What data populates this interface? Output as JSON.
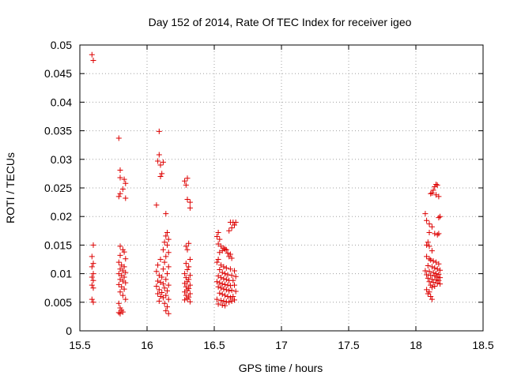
{
  "chart_data": {
    "type": "scatter",
    "title": "Day 152 of 2014, Rate Of TEC Index for receiver igeo",
    "xlabel": "GPS time / hours",
    "ylabel": "ROTI / TECUs",
    "xlim": [
      15.5,
      18.5
    ],
    "ylim": [
      0,
      0.05
    ],
    "xticks": [
      15.5,
      16,
      16.5,
      17,
      17.5,
      18,
      18.5
    ],
    "yticks": [
      0,
      0.005,
      0.01,
      0.015,
      0.02,
      0.025,
      0.03,
      0.035,
      0.04,
      0.045,
      0.05
    ],
    "xtick_labels": [
      "15.5",
      "16",
      "16.5",
      "17",
      "17.5",
      "18",
      "18.5"
    ],
    "ytick_labels": [
      "0",
      "0.005",
      "0.01",
      "0.015",
      "0.02",
      "0.025",
      "0.03",
      "0.035",
      "0.04",
      "0.045",
      "0.05"
    ],
    "grid": true,
    "marker": "+",
    "marker_color": "#dd0000",
    "series": [
      {
        "name": "ROTI",
        "points": [
          [
            15.59,
            0.0483
          ],
          [
            15.6,
            0.0473
          ],
          [
            15.6,
            0.015
          ],
          [
            15.59,
            0.013
          ],
          [
            15.6,
            0.0118
          ],
          [
            15.59,
            0.0112
          ],
          [
            15.6,
            0.01
          ],
          [
            15.59,
            0.0094
          ],
          [
            15.6,
            0.0088
          ],
          [
            15.59,
            0.008
          ],
          [
            15.6,
            0.0075
          ],
          [
            15.59,
            0.0055
          ],
          [
            15.6,
            0.005
          ],
          [
            15.79,
            0.0337
          ],
          [
            15.8,
            0.0281
          ],
          [
            15.8,
            0.0268
          ],
          [
            15.83,
            0.0265
          ],
          [
            15.84,
            0.0258
          ],
          [
            15.82,
            0.0248
          ],
          [
            15.8,
            0.024
          ],
          [
            15.79,
            0.0235
          ],
          [
            15.84,
            0.0232
          ],
          [
            15.8,
            0.0148
          ],
          [
            15.82,
            0.0142
          ],
          [
            15.83,
            0.0138
          ],
          [
            15.8,
            0.0132
          ],
          [
            15.84,
            0.0126
          ],
          [
            15.79,
            0.012
          ],
          [
            15.81,
            0.0115
          ],
          [
            15.83,
            0.0112
          ],
          [
            15.8,
            0.0108
          ],
          [
            15.82,
            0.0105
          ],
          [
            15.84,
            0.0102
          ],
          [
            15.79,
            0.01
          ],
          [
            15.81,
            0.0097
          ],
          [
            15.83,
            0.0094
          ],
          [
            15.8,
            0.009
          ],
          [
            15.82,
            0.0087
          ],
          [
            15.84,
            0.0084
          ],
          [
            15.79,
            0.0081
          ],
          [
            15.81,
            0.0077
          ],
          [
            15.83,
            0.0073
          ],
          [
            15.8,
            0.0068
          ],
          [
            15.82,
            0.0062
          ],
          [
            15.84,
            0.0055
          ],
          [
            15.79,
            0.0048
          ],
          [
            15.8,
            0.004
          ],
          [
            15.81,
            0.0036
          ],
          [
            15.79,
            0.0032
          ],
          [
            15.8,
            0.003
          ],
          [
            15.82,
            0.0033
          ],
          [
            16.09,
            0.0349
          ],
          [
            16.09,
            0.0308
          ],
          [
            16.08,
            0.0297
          ],
          [
            16.12,
            0.0295
          ],
          [
            16.1,
            0.029
          ],
          [
            16.11,
            0.0275
          ],
          [
            16.1,
            0.027
          ],
          [
            16.07,
            0.022
          ],
          [
            16.14,
            0.0205
          ],
          [
            16.15,
            0.0172
          ],
          [
            16.14,
            0.0166
          ],
          [
            16.16,
            0.016
          ],
          [
            16.13,
            0.0155
          ],
          [
            16.15,
            0.015
          ],
          [
            16.12,
            0.0142
          ],
          [
            16.16,
            0.0137
          ],
          [
            16.14,
            0.013
          ],
          [
            16.1,
            0.0125
          ],
          [
            16.13,
            0.012
          ],
          [
            16.08,
            0.0115
          ],
          [
            16.16,
            0.0112
          ],
          [
            16.12,
            0.0108
          ],
          [
            16.07,
            0.0104
          ],
          [
            16.15,
            0.01
          ],
          [
            16.09,
            0.0097
          ],
          [
            16.11,
            0.0094
          ],
          [
            16.14,
            0.009
          ],
          [
            16.08,
            0.0087
          ],
          [
            16.1,
            0.0085
          ],
          [
            16.12,
            0.0082
          ],
          [
            16.16,
            0.008
          ],
          [
            16.07,
            0.0078
          ],
          [
            16.13,
            0.0075
          ],
          [
            16.09,
            0.0072
          ],
          [
            16.15,
            0.007
          ],
          [
            16.11,
            0.0067
          ],
          [
            16.08,
            0.0065
          ],
          [
            16.14,
            0.0062
          ],
          [
            16.1,
            0.006
          ],
          [
            16.12,
            0.0058
          ],
          [
            16.16,
            0.0055
          ],
          [
            16.09,
            0.0052
          ],
          [
            16.13,
            0.0048
          ],
          [
            16.15,
            0.0042
          ],
          [
            16.14,
            0.0035
          ],
          [
            16.16,
            0.003
          ],
          [
            16.3,
            0.0267
          ],
          [
            16.28,
            0.0262
          ],
          [
            16.29,
            0.0255
          ],
          [
            16.3,
            0.023
          ],
          [
            16.32,
            0.0225
          ],
          [
            16.32,
            0.0215
          ],
          [
            16.31,
            0.0153
          ],
          [
            16.29,
            0.0148
          ],
          [
            16.3,
            0.0142
          ],
          [
            16.32,
            0.0125
          ],
          [
            16.29,
            0.0118
          ],
          [
            16.31,
            0.0112
          ],
          [
            16.3,
            0.0107
          ],
          [
            16.28,
            0.01
          ],
          [
            16.32,
            0.0097
          ],
          [
            16.29,
            0.0093
          ],
          [
            16.31,
            0.009
          ],
          [
            16.3,
            0.0086
          ],
          [
            16.28,
            0.0083
          ],
          [
            16.32,
            0.008
          ],
          [
            16.29,
            0.0077
          ],
          [
            16.31,
            0.0074
          ],
          [
            16.3,
            0.0071
          ],
          [
            16.28,
            0.0068
          ],
          [
            16.32,
            0.0065
          ],
          [
            16.29,
            0.0062
          ],
          [
            16.31,
            0.0059
          ],
          [
            16.3,
            0.0056
          ],
          [
            16.28,
            0.0054
          ],
          [
            16.32,
            0.0051
          ],
          [
            16.53,
            0.0172
          ],
          [
            16.52,
            0.0165
          ],
          [
            16.54,
            0.016
          ],
          [
            16.53,
            0.0152
          ],
          [
            16.55,
            0.0148
          ],
          [
            16.57,
            0.0145
          ],
          [
            16.58,
            0.0143
          ],
          [
            16.59,
            0.0142
          ],
          [
            16.56,
            0.014
          ],
          [
            16.54,
            0.0137
          ],
          [
            16.6,
            0.0136
          ],
          [
            16.62,
            0.0134
          ],
          [
            16.61,
            0.013
          ],
          [
            16.63,
            0.0127
          ],
          [
            16.62,
            0.019
          ],
          [
            16.64,
            0.019
          ],
          [
            16.66,
            0.019
          ],
          [
            16.65,
            0.0185
          ],
          [
            16.63,
            0.018
          ],
          [
            16.61,
            0.0175
          ],
          [
            16.53,
            0.0125
          ],
          [
            16.52,
            0.012
          ],
          [
            16.55,
            0.0115
          ],
          [
            16.57,
            0.0112
          ],
          [
            16.59,
            0.011
          ],
          [
            16.54,
            0.0107
          ],
          [
            16.62,
            0.0108
          ],
          [
            16.65,
            0.0105
          ],
          [
            16.56,
            0.0102
          ],
          [
            16.58,
            0.01
          ],
          [
            16.6,
            0.0098
          ],
          [
            16.53,
            0.0096
          ],
          [
            16.63,
            0.0097
          ],
          [
            16.66,
            0.0095
          ],
          [
            16.55,
            0.0093
          ],
          [
            16.57,
            0.0091
          ],
          [
            16.59,
            0.009
          ],
          [
            16.61,
            0.0088
          ],
          [
            16.64,
            0.0088
          ],
          [
            16.52,
            0.0086
          ],
          [
            16.54,
            0.0084
          ],
          [
            16.56,
            0.0082
          ],
          [
            16.58,
            0.0081
          ],
          [
            16.6,
            0.008
          ],
          [
            16.62,
            0.0079
          ],
          [
            16.65,
            0.008
          ],
          [
            16.53,
            0.0077
          ],
          [
            16.55,
            0.0075
          ],
          [
            16.57,
            0.0073
          ],
          [
            16.59,
            0.0072
          ],
          [
            16.61,
            0.007
          ],
          [
            16.63,
            0.0071
          ],
          [
            16.66,
            0.0069
          ],
          [
            16.54,
            0.0066
          ],
          [
            16.56,
            0.0064
          ],
          [
            16.58,
            0.0062
          ],
          [
            16.6,
            0.006
          ],
          [
            16.62,
            0.0058
          ],
          [
            16.64,
            0.006
          ],
          [
            16.52,
            0.0055
          ],
          [
            16.55,
            0.0053
          ],
          [
            16.57,
            0.0052
          ],
          [
            16.59,
            0.0051
          ],
          [
            16.61,
            0.005
          ],
          [
            16.63,
            0.0052
          ],
          [
            16.65,
            0.0054
          ],
          [
            16.53,
            0.0047
          ],
          [
            16.56,
            0.0045
          ],
          [
            16.58,
            0.0044
          ],
          [
            18.07,
            0.0205
          ],
          [
            18.08,
            0.0193
          ],
          [
            18.1,
            0.0187
          ],
          [
            18.12,
            0.0182
          ],
          [
            18.1,
            0.0172
          ],
          [
            18.14,
            0.017
          ],
          [
            18.16,
            0.0168
          ],
          [
            18.17,
            0.017
          ],
          [
            18.12,
            0.0241
          ],
          [
            18.13,
            0.0246
          ],
          [
            18.14,
            0.0252
          ],
          [
            18.15,
            0.0256
          ],
          [
            18.16,
            0.0255
          ],
          [
            18.11,
            0.024
          ],
          [
            18.15,
            0.0238
          ],
          [
            18.17,
            0.0235
          ],
          [
            18.18,
            0.02
          ],
          [
            18.17,
            0.0198
          ],
          [
            18.08,
            0.015
          ],
          [
            18.09,
            0.0155
          ],
          [
            18.1,
            0.0148
          ],
          [
            18.12,
            0.014
          ],
          [
            18.08,
            0.013
          ],
          [
            18.1,
            0.0126
          ],
          [
            18.11,
            0.0124
          ],
          [
            18.13,
            0.0122
          ],
          [
            18.15,
            0.012
          ],
          [
            18.17,
            0.0117
          ],
          [
            18.09,
            0.0114
          ],
          [
            18.12,
            0.0112
          ],
          [
            18.14,
            0.011
          ],
          [
            18.16,
            0.0108
          ],
          [
            18.18,
            0.0106
          ],
          [
            18.07,
            0.0105
          ],
          [
            18.1,
            0.0104
          ],
          [
            18.13,
            0.0102
          ],
          [
            18.15,
            0.01
          ],
          [
            18.17,
            0.0099
          ],
          [
            18.08,
            0.0098
          ],
          [
            18.11,
            0.0097
          ],
          [
            18.14,
            0.0096
          ],
          [
            18.16,
            0.0094
          ],
          [
            18.18,
            0.0093
          ],
          [
            18.09,
            0.0092
          ],
          [
            18.12,
            0.009
          ],
          [
            18.15,
            0.0089
          ],
          [
            18.17,
            0.0088
          ],
          [
            18.1,
            0.0086
          ],
          [
            18.13,
            0.0085
          ],
          [
            18.16,
            0.0083
          ],
          [
            18.18,
            0.0082
          ],
          [
            18.11,
            0.008
          ],
          [
            18.14,
            0.0078
          ],
          [
            18.12,
            0.0076
          ],
          [
            18.08,
            0.0072
          ],
          [
            18.1,
            0.0068
          ],
          [
            18.09,
            0.0065
          ],
          [
            18.11,
            0.006
          ],
          [
            18.12,
            0.0055
          ]
        ]
      }
    ]
  }
}
